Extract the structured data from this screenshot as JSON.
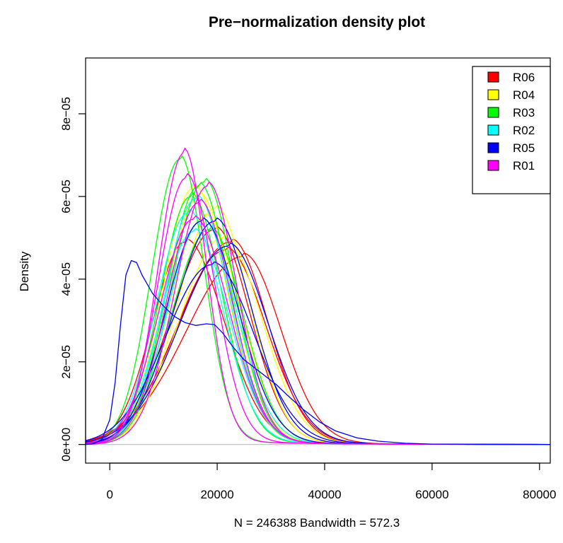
{
  "chart_data": {
    "type": "line",
    "title": "Pre−normalization density plot",
    "xlabel": "N = 246388   Bandwidth = 572.3",
    "ylabel": "Density",
    "xlim": [
      -4500,
      82000
    ],
    "ylim": [
      -4.5e-06,
      9.35e-05
    ],
    "x_ticks": [
      0,
      20000,
      40000,
      60000,
      80000
    ],
    "x_tick_labels": [
      "0",
      "20000",
      "40000",
      "60000",
      "80000"
    ],
    "y_ticks": [
      0,
      2e-05,
      4e-05,
      6e-05,
      8e-05
    ],
    "y_tick_labels": [
      "0e+00",
      "2e−05",
      "4e−05",
      "6e−05",
      "8e−05"
    ],
    "grid": false,
    "baseline": 0,
    "baseline_color": "#bebebe",
    "legend": {
      "position": "top-right",
      "entries": [
        {
          "name": "R06",
          "color": "#ff0000"
        },
        {
          "name": "R04",
          "color": "#ffff00"
        },
        {
          "name": "R03",
          "color": "#00ff00"
        },
        {
          "name": "R02",
          "color": "#00ffff"
        },
        {
          "name": "R05",
          "color": "#0000ff"
        },
        {
          "name": "R01",
          "color": "#ff00ff"
        }
      ]
    },
    "series": [
      {
        "color": "#ff0000",
        "peak_x": 14000,
        "peak_y": 4.9e-05,
        "sigma_left": 6000,
        "sigma_right": 7200
      },
      {
        "color": "#ff0000",
        "peak_x": 22500,
        "peak_y": 4.9e-05,
        "sigma_left": 9500,
        "sigma_right": 6800
      },
      {
        "color": "#ff0000",
        "peak_x": 24800,
        "peak_y": 4.55e-05,
        "sigma_left": 10500,
        "sigma_right": 7000
      },
      {
        "color": "#ff0000",
        "peak_x": 19500,
        "peak_y": 5.2e-05,
        "sigma_left": 8000,
        "sigma_right": 6500
      },
      {
        "color": "#ff0000",
        "peak_x": 21500,
        "peak_y": 4.7e-05,
        "sigma_left": 9000,
        "sigma_right": 7500
      },
      {
        "color": "#ffff00",
        "peak_x": 15500,
        "peak_y": 6.2e-05,
        "sigma_left": 5600,
        "sigma_right": 6200
      },
      {
        "color": "#ffff00",
        "peak_x": 19500,
        "peak_y": 5.7e-05,
        "sigma_left": 6800,
        "sigma_right": 6400
      },
      {
        "color": "#ffff00",
        "peak_x": 17500,
        "peak_y": 5.5e-05,
        "sigma_left": 6500,
        "sigma_right": 6600
      },
      {
        "color": "#ffff00",
        "peak_x": 16500,
        "peak_y": 6e-05,
        "sigma_left": 6000,
        "sigma_right": 6300
      },
      {
        "color": "#ffff00",
        "peak_x": 21000,
        "peak_y": 5e-05,
        "sigma_left": 8000,
        "sigma_right": 7200
      },
      {
        "color": "#00ff00",
        "peak_x": 13000,
        "peak_y": 6.9e-05,
        "sigma_left": 5200,
        "sigma_right": 4600
      },
      {
        "color": "#00ff00",
        "peak_x": 17500,
        "peak_y": 6.35e-05,
        "sigma_left": 6000,
        "sigma_right": 5600
      },
      {
        "color": "#00ff00",
        "peak_x": 16500,
        "peak_y": 6.25e-05,
        "sigma_left": 5800,
        "sigma_right": 5800
      },
      {
        "color": "#00ff00",
        "peak_x": 15000,
        "peak_y": 6e-05,
        "sigma_left": 5600,
        "sigma_right": 5800
      },
      {
        "color": "#00ff00",
        "peak_x": 18500,
        "peak_y": 5.2e-05,
        "sigma_left": 7000,
        "sigma_right": 6200
      },
      {
        "color": "#00ffff",
        "peak_x": 14500,
        "peak_y": 5.6e-05,
        "sigma_left": 5800,
        "sigma_right": 6200
      },
      {
        "color": "#00ffff",
        "peak_x": 16000,
        "peak_y": 5.95e-05,
        "sigma_left": 5800,
        "sigma_right": 6100
      },
      {
        "color": "#00ffff",
        "peak_x": 17000,
        "peak_y": 5.4e-05,
        "sigma_left": 6200,
        "sigma_right": 6400
      },
      {
        "color": "#00ffff",
        "peak_x": 15500,
        "peak_y": 5.15e-05,
        "sigma_left": 6000,
        "sigma_right": 6500
      },
      {
        "color": "#0000ff",
        "peak_x": 17000,
        "peak_y": 5.4e-05,
        "sigma_left": 6500,
        "sigma_right": 6800
      },
      {
        "color": "#0000ff",
        "peak_x": 19500,
        "peak_y": 5.4e-05,
        "sigma_left": 7500,
        "sigma_right": 6800
      },
      {
        "color": "#0000ff",
        "peak_x": 22000,
        "peak_y": 4.8e-05,
        "sigma_left": 9000,
        "sigma_right": 7400
      },
      {
        "color": "#0000ff",
        "peak_x": 19000,
        "peak_y": 4.35e-05,
        "sigma_left": 8500,
        "sigma_right": 7800
      },
      {
        "color": "#ff00ff",
        "peak_x": 13800,
        "peak_y": 7.05e-05,
        "sigma_left": 4800,
        "sigma_right": 4200
      },
      {
        "color": "#ff00ff",
        "peak_x": 14200,
        "peak_y": 6.45e-05,
        "sigma_left": 5200,
        "sigma_right": 5200
      },
      {
        "color": "#ff00ff",
        "peak_x": 18200,
        "peak_y": 6.25e-05,
        "sigma_left": 6000,
        "sigma_right": 5400
      },
      {
        "color": "#ff00ff",
        "peak_x": 16500,
        "peak_y": 5.85e-05,
        "sigma_left": 5800,
        "sigma_right": 6000
      },
      {
        "color": "#ff00ff",
        "peak_x": 15500,
        "peak_y": 5.45e-05,
        "sigma_left": 6200,
        "sigma_right": 6500
      },
      {
        "color": "#0000ff",
        "points": [
          [
            -4500,
            0
          ],
          [
            -3000,
            2e-07
          ],
          [
            -1500,
            1.2e-06
          ],
          [
            0,
            6e-06
          ],
          [
            1000,
            1.5e-05
          ],
          [
            2000,
            2.9e-05
          ],
          [
            3000,
            4.1e-05
          ],
          [
            4000,
            4.45e-05
          ],
          [
            5000,
            4.4e-05
          ],
          [
            6000,
            4.1e-05
          ],
          [
            8000,
            3.65e-05
          ],
          [
            10000,
            3.35e-05
          ],
          [
            12000,
            3.1e-05
          ],
          [
            14000,
            2.95e-05
          ],
          [
            16000,
            2.88e-05
          ],
          [
            18000,
            2.92e-05
          ],
          [
            19500,
            2.9e-05
          ],
          [
            21000,
            2.7e-05
          ],
          [
            23000,
            2.35e-05
          ],
          [
            25000,
            2.05e-05
          ],
          [
            27000,
            1.85e-05
          ],
          [
            29000,
            1.65e-05
          ],
          [
            31000,
            1.45e-05
          ],
          [
            33000,
            1.2e-05
          ],
          [
            36000,
            8.5e-06
          ],
          [
            39000,
            5.5e-06
          ],
          [
            42000,
            3.3e-06
          ],
          [
            46000,
            1.6e-06
          ],
          [
            50000,
            8e-07
          ],
          [
            55000,
            3e-07
          ],
          [
            60000,
            1e-07
          ],
          [
            82000,
            0
          ]
        ]
      }
    ]
  }
}
